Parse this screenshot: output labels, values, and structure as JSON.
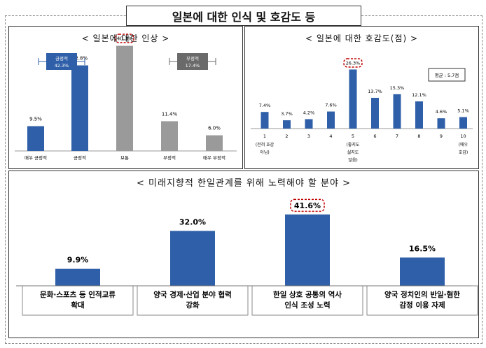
{
  "title": "일본에 대한 인식 및 호감도 등",
  "chart_data": [
    {
      "type": "bar",
      "title": "< 일본에 대한 인상 >",
      "categories": [
        "매우 긍정적",
        "긍정적",
        "보통",
        "부정적",
        "매우 부정적"
      ],
      "values": [
        9.5,
        32.8,
        40.3,
        11.4,
        6.0
      ],
      "value_labels": [
        "9.5%",
        "32.8%",
        "40.3%",
        "11.4%",
        "6.0%"
      ],
      "bar_colors": [
        "#2f5fa8",
        "#2f5fa8",
        "#9a9a9a",
        "#9a9a9a",
        "#9a9a9a"
      ],
      "highlight_index": 2,
      "ylim": [
        0,
        45
      ],
      "annotations": [
        {
          "label": "긍정적",
          "value": "42.3%",
          "color": "#2f5fa8"
        },
        {
          "label": "부정적",
          "value": "17.4%",
          "color": "#6a6a6a"
        }
      ]
    },
    {
      "type": "bar",
      "title": "< 일본에 대한 호감도(점) >",
      "categories": [
        "1",
        "2",
        "3",
        "4",
        "5",
        "6",
        "7",
        "8",
        "9",
        "10"
      ],
      "category_notes": [
        "(전혀 호감 아님)",
        "",
        "",
        "",
        "(좋지도 싫지도 않음)",
        "",
        "",
        "",
        "",
        "(매우 호감)"
      ],
      "values": [
        7.4,
        3.7,
        4.2,
        7.6,
        26.3,
        13.7,
        15.3,
        12.1,
        4.6,
        5.1
      ],
      "value_labels": [
        "7.4%",
        "3.7%",
        "4.2%",
        "7.6%",
        "26.3%",
        "13.7%",
        "15.3%",
        "12.1%",
        "4.6%",
        "5.1%"
      ],
      "bar_color": "#2f5fa8",
      "highlight_index": 4,
      "ylim": [
        0,
        28
      ],
      "annotation": "평균 : 5.7점"
    },
    {
      "type": "bar",
      "title": "< 미래지향적 한일관계를 위해 노력해야 할 분야 >",
      "categories": [
        "문화·스포츠 등 인적교류 확대",
        "양국 경제·산업 분야 협력 강화",
        "한일 상호 공통의 역사 인식 조성 노력",
        "양국 정치인의 반일·혐한 감정 이용 자제"
      ],
      "category_lines": [
        [
          "문화·스포츠 등 인적교류",
          "확대"
        ],
        [
          "양국 경제·산업 분야 협력",
          "강화"
        ],
        [
          "한일 상호 공통의 역사",
          "인식 조성 노력"
        ],
        [
          "양국 정치인의 반일·혐한",
          "감정 이용 자제"
        ]
      ],
      "values": [
        9.9,
        32.0,
        41.6,
        16.5
      ],
      "value_labels": [
        "9.9%",
        "32.0%",
        "41.6%",
        "16.5%"
      ],
      "bar_color": "#2f5fa8",
      "highlight_index": 2,
      "ylim": [
        0,
        44
      ]
    }
  ]
}
